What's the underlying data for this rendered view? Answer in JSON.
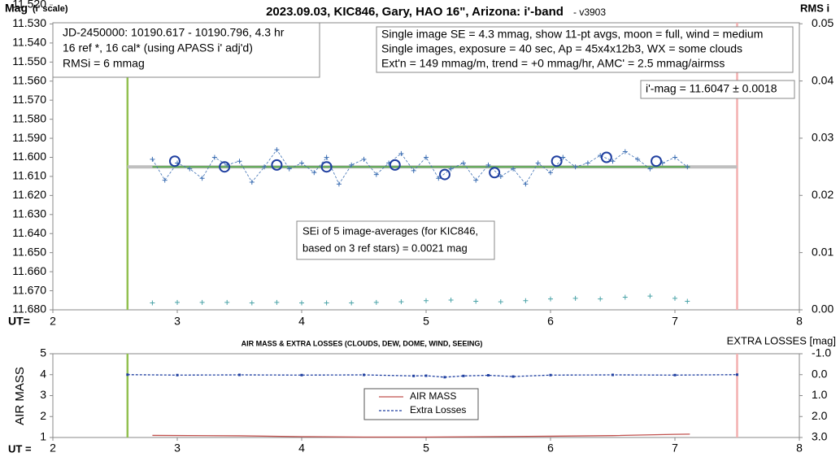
{
  "chart_data": [
    {
      "type": "scatter",
      "title": "2023.09.03, KIC846, Gary, HAO 16\", Arizona: i'-band",
      "subtitle": "- v3903",
      "y_label": "Mag",
      "y_label_note": "(i' scale)",
      "y2_label": "RMS i",
      "x_label": "UT=",
      "xlim": [
        2,
        8
      ],
      "xticks": [
        2,
        3,
        4,
        5,
        6,
        7,
        8
      ],
      "ylim": [
        11.68,
        11.52
      ],
      "yticks": [
        {
          "value": 11.52,
          "label": "11.520"
        },
        {
          "value": 11.53,
          "label": "11.530"
        },
        {
          "value": 11.54,
          "label": "11.540"
        },
        {
          "value": 11.55,
          "label": "11.550"
        },
        {
          "value": 11.56,
          "label": "11.560"
        },
        {
          "value": 11.57,
          "label": "11.570"
        },
        {
          "value": 11.58,
          "label": "11.580"
        },
        {
          "value": 11.59,
          "label": "11.590"
        },
        {
          "value": 11.6,
          "label": "11.600"
        },
        {
          "value": 11.61,
          "label": "11.610"
        },
        {
          "value": 11.62,
          "label": "11.620"
        },
        {
          "value": 11.63,
          "label": "11.630"
        },
        {
          "value": 11.64,
          "label": "11.640"
        },
        {
          "value": 11.65,
          "label": "11.650"
        },
        {
          "value": 11.66,
          "label": "11.660"
        },
        {
          "value": 11.67,
          "label": "11.670"
        },
        {
          "value": 11.68,
          "label": "11.680"
        }
      ],
      "y2lim": [
        0,
        0.0533
      ],
      "y2ticks": [
        {
          "value": 0.05,
          "label": "0.05"
        },
        {
          "value": 0.04,
          "label": "0.04"
        },
        {
          "value": 0.03,
          "label": "0.03"
        },
        {
          "value": 0.02,
          "label": "0.02"
        },
        {
          "value": 0.01,
          "label": "0.01"
        },
        {
          "value": 0,
          "label": "0.00"
        }
      ],
      "grid": false,
      "series": [
        {
          "marker": "plus",
          "color": "#3d6fb3",
          "dashed": true,
          "x": [
            2.8,
            2.9,
            3.0,
            3.1,
            3.2,
            3.3,
            3.4,
            3.5,
            3.6,
            3.7,
            3.8,
            3.9,
            4.0,
            4.1,
            4.2,
            4.3,
            4.4,
            4.5,
            4.6,
            4.7,
            4.8,
            4.9,
            5.0,
            5.1,
            5.2,
            5.3,
            5.4,
            5.5,
            5.6,
            5.7,
            5.8,
            5.9,
            6.0,
            6.1,
            6.2,
            6.3,
            6.4,
            6.5,
            6.6,
            6.7,
            6.8,
            6.9,
            7.0,
            7.1
          ],
          "values": [
            11.601,
            11.612,
            11.603,
            11.606,
            11.611,
            11.6,
            11.604,
            11.602,
            11.613,
            11.605,
            11.596,
            11.606,
            11.603,
            11.608,
            11.6,
            11.614,
            11.604,
            11.601,
            11.609,
            11.603,
            11.598,
            11.607,
            11.6,
            11.611,
            11.606,
            11.603,
            11.612,
            11.604,
            11.61,
            11.606,
            11.614,
            11.603,
            11.608,
            11.6,
            11.605,
            11.603,
            11.599,
            11.602,
            11.597,
            11.601,
            11.606,
            11.603,
            11.6,
            11.605
          ]
        },
        {
          "marker": "circle",
          "color": "#1f3fa0",
          "x": [
            2.98,
            3.38,
            3.8,
            4.2,
            4.75,
            5.15,
            5.55,
            6.05,
            6.45,
            6.85
          ],
          "values": [
            11.602,
            11.605,
            11.604,
            11.605,
            11.604,
            11.609,
            11.608,
            11.602,
            11.6,
            11.602
          ]
        },
        {
          "marker": "plus",
          "color": "#4aa3a8",
          "axis": "y2",
          "x": [
            2.8,
            3.0,
            3.2,
            3.4,
            3.6,
            3.8,
            4.0,
            4.2,
            4.4,
            4.6,
            4.8,
            5.0,
            5.2,
            5.4,
            5.6,
            5.8,
            6.0,
            6.2,
            6.4,
            6.6,
            6.8,
            7.0,
            7.1
          ],
          "values": [
            0.0012,
            0.0013,
            0.0013,
            0.0013,
            0.0012,
            0.0013,
            0.0012,
            0.0012,
            0.0012,
            0.0013,
            0.0014,
            0.0016,
            0.0017,
            0.0015,
            0.0014,
            0.0016,
            0.0019,
            0.002,
            0.0019,
            0.0022,
            0.0024,
            0.002,
            0.0015
          ]
        }
      ],
      "h_lines": [
        {
          "x": [
            2.6,
            7.5
          ],
          "values": [
            11.605,
            11.605
          ],
          "color": "#bfbfbf",
          "width": 4
        },
        {
          "x": [
            2.8,
            7.12
          ],
          "values": [
            11.605,
            11.605
          ],
          "color": "#5aa84f",
          "width": 2
        }
      ],
      "v_lines": [
        {
          "x": 2.6,
          "color": "#92c050"
        },
        {
          "x": 7.5,
          "color": "#f4b0b0"
        }
      ],
      "annotations": [
        {
          "lines": [
            "JD-2450000: 10190.617 - 10190.796, 4.3  hr",
            "16 ref *, 16 cal* (using APASS i' adj'd)",
            "RMSi = 6 mmag"
          ]
        },
        {
          "lines": [
            "Single image SE = 4.3 mmag, show 11-pt avgs, moon = full, wind = medium",
            "Single images, exposure = 40 sec, Ap = 45x4x12b3, WX = some clouds",
            "Ext'n = 149 mmag/m, trend = +0 mmag/hr, AMC' = 2.5 mmag/airmss"
          ]
        },
        {
          "lines": [
            "i'-mag = 11.6047 ± 0.0018"
          ]
        },
        {
          "lines": [
            "SEi of 5 image-averages (for KIC846,",
            "based on 3 ref stars) = 0.0021 mag"
          ]
        }
      ]
    },
    {
      "type": "line",
      "title": "AIR MASS & EXTRA LOSSES (CLOUDS, DEW, DOME, WIND, SEEING)",
      "y_label": "AIR MASS",
      "y2_label": "EXTRA LOSSES [mag]",
      "x_label": "UT =",
      "xlim": [
        2,
        8
      ],
      "xticks": [
        2,
        3,
        4,
        5,
        6,
        7,
        8
      ],
      "ylim": [
        1,
        5
      ],
      "yticks": [
        1,
        2,
        3,
        4,
        5
      ],
      "y2lim": [
        3,
        -1
      ],
      "y2ticks": [
        {
          "value": -1,
          "label": "-1.0"
        },
        {
          "value": 0,
          "label": "0.0"
        },
        {
          "value": 1,
          "label": "1.0"
        },
        {
          "value": 2,
          "label": "2.0"
        },
        {
          "value": 3,
          "label": "3.0"
        }
      ],
      "legend": "center",
      "series": [
        {
          "name": "AIR MASS",
          "color": "#c0504d",
          "x": [
            2.8,
            3.5,
            4.0,
            4.5,
            5.0,
            5.5,
            6.0,
            6.5,
            7.0,
            7.12
          ],
          "values": [
            1.1,
            1.08,
            1.04,
            1.02,
            1.02,
            1.04,
            1.06,
            1.09,
            1.15,
            1.16
          ]
        },
        {
          "name": "Extra Losses",
          "color": "#1f3fa0",
          "axis": "y2",
          "dashed": true,
          "x": [
            2.6,
            3.0,
            3.5,
            4.0,
            4.5,
            4.9,
            5.0,
            5.15,
            5.3,
            5.5,
            5.7,
            6.0,
            6.5,
            7.0,
            7.5
          ],
          "values": [
            0,
            0.02,
            0.01,
            0.02,
            0.01,
            0.06,
            0.05,
            0.12,
            0.06,
            0.03,
            0.09,
            0.02,
            0.01,
            0.02,
            0
          ]
        }
      ],
      "v_lines": [
        {
          "x": 2.6,
          "color": "#92c050"
        },
        {
          "x": 7.5,
          "color": "#f4b0b0"
        }
      ]
    }
  ]
}
